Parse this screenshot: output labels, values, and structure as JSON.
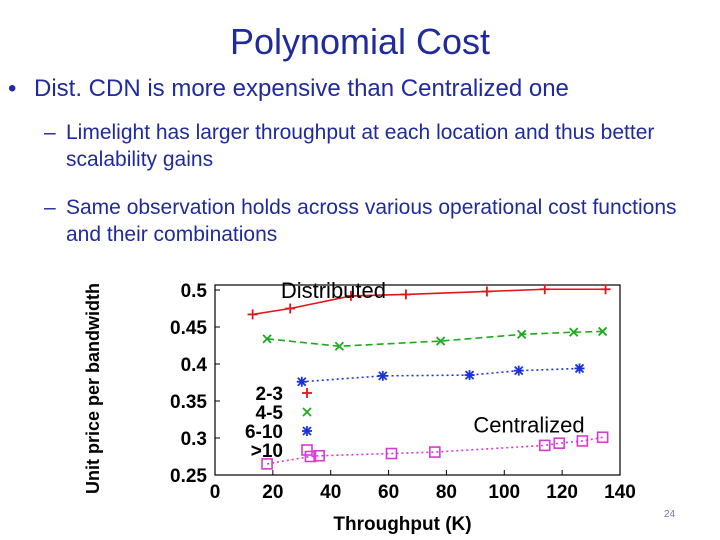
{
  "slide": {
    "title": "Polynomial Cost",
    "bullet_symbol": "•",
    "bullet": "Dist. CDN is more expensive than Centralized one",
    "sub_symbol": "–",
    "sub_bullets": [
      "Limelight has larger throughput at each location and thus better scalability gains",
      "Same observation holds across various operational cost functions and their combinations"
    ],
    "page_number": "24"
  },
  "colors": {
    "text": "#1f2a9c",
    "series_2_3": "#e4141c",
    "series_4_5": "#1faa1f",
    "series_6_10": "#1a32d6",
    "series_10p": "#d63ad0"
  },
  "chart_data": {
    "type": "line",
    "xlabel": "Throughput (K)",
    "ylabel": "Unit price per bandwidth",
    "xlim": [
      0,
      140
    ],
    "ylim": [
      0.25,
      0.5
    ],
    "xticks": [
      "0",
      "20",
      "40",
      "60",
      "80",
      "100",
      "120",
      "140"
    ],
    "yticks": [
      "0.5",
      "0.45",
      "0.4",
      "0.35",
      "0.3",
      "0.25"
    ],
    "grid": false,
    "legend_position": "bottom-left",
    "annotations": [
      {
        "text": "Distributed",
        "x": 20,
        "y": 0.5
      },
      {
        "text": "Centralized",
        "x": 90,
        "y": 0.318
      }
    ],
    "series": [
      {
        "name": "2-3",
        "marker": "plus",
        "style": "solid",
        "x": [
          13,
          26,
          47,
          66,
          94,
          114,
          135
        ],
        "y": [
          0.467,
          0.475,
          0.492,
          0.494,
          0.498,
          0.501,
          0.501
        ]
      },
      {
        "name": "4-5",
        "marker": "x",
        "style": "dashed",
        "x": [
          18,
          43,
          78,
          106,
          124,
          134
        ],
        "y": [
          0.434,
          0.424,
          0.431,
          0.44,
          0.443,
          0.444
        ]
      },
      {
        "name": "6-10",
        "marker": "asterisk",
        "style": "dotted",
        "x": [
          30,
          58,
          88,
          105,
          126
        ],
        "y": [
          0.376,
          0.384,
          0.385,
          0.391,
          0.394
        ]
      },
      {
        "name": ">10",
        "marker": "square",
        "style": "dotted",
        "x": [
          18,
          33,
          36,
          61,
          76,
          114,
          119,
          127,
          134
        ],
        "y": [
          0.265,
          0.275,
          0.276,
          0.279,
          0.281,
          0.29,
          0.293,
          0.296,
          0.301
        ]
      }
    ]
  }
}
